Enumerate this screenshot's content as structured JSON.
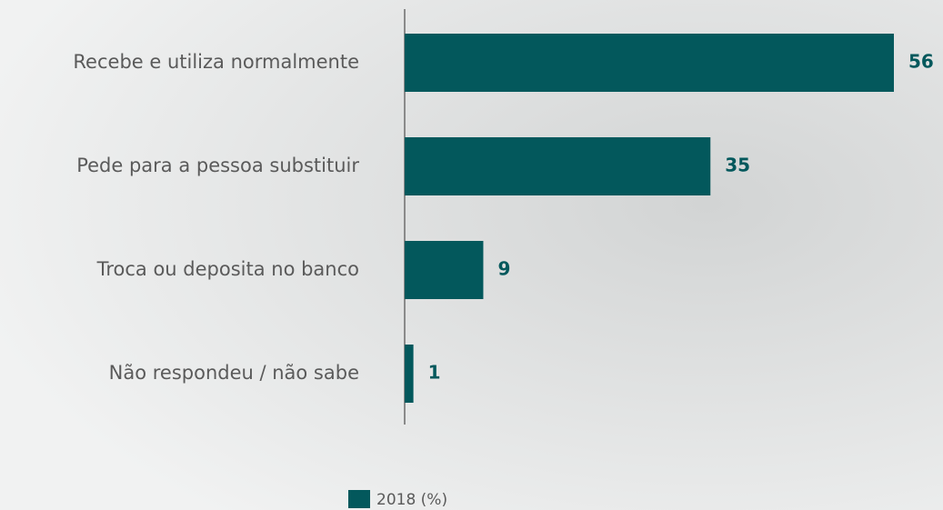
{
  "chart_data": {
    "type": "bar",
    "orientation": "horizontal",
    "categories": [
      "Recebe e utiliza normalmente",
      "Pede para a pessoa substituir",
      "Troca ou deposita no banco",
      "Não respondeu / não sabe"
    ],
    "series": [
      {
        "name": "2018 (%)",
        "color": "#03585c",
        "values": [
          56,
          35,
          9,
          1
        ]
      }
    ],
    "xlim": [
      0,
      56
    ]
  }
}
